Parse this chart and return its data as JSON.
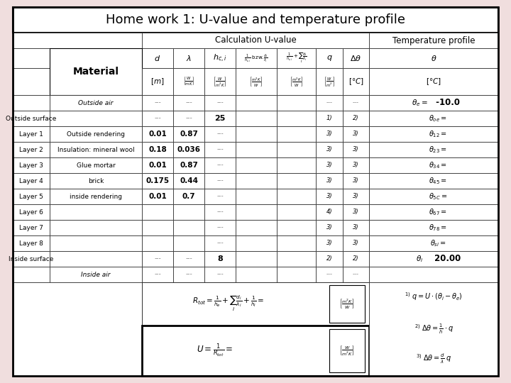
{
  "title": "Home work 1: U-value and temperature profile",
  "bg_color": "#f0dede",
  "header1": "Calculation U-value",
  "header2": "Temperature profile",
  "rows_data": [
    [
      "",
      "Outside air",
      "---",
      "---",
      "---",
      "---",
      "---",
      "outside_air"
    ],
    [
      "Outside surface",
      "",
      "---",
      "---",
      "25",
      "1)",
      "2)",
      "outside_surface"
    ],
    [
      "Layer 1",
      "Outside rendering",
      "0.01",
      "0.87",
      "---",
      "3)",
      "3)",
      "layer"
    ],
    [
      "Layer 2",
      "Insulation: mineral wool",
      "0.18",
      "0.036",
      "---",
      "3)",
      "3)",
      "layer"
    ],
    [
      "Layer 3",
      "Glue mortar",
      "0.01",
      "0.87",
      "---",
      "3)",
      "3)",
      "layer"
    ],
    [
      "Layer 4",
      "brick",
      "0.175",
      "0.44",
      "---",
      "3)",
      "3)",
      "layer"
    ],
    [
      "Layer 5",
      "inside rendering",
      "0.01",
      "0.7",
      "---",
      "3)",
      "3)",
      "layer"
    ],
    [
      "Layer 6",
      "",
      "",
      "",
      "---",
      "4)",
      "3)",
      "layer_empty"
    ],
    [
      "Layer 7",
      "",
      "",
      "",
      "---",
      "3)",
      "3)",
      "layer_empty"
    ],
    [
      "Layer 8",
      "",
      "",
      "",
      "---",
      "3)",
      "3)",
      "layer_empty"
    ],
    [
      "Inside surface",
      "",
      "---",
      "---",
      "8",
      "2)",
      "2)",
      "inside_surface"
    ],
    [
      "",
      "Inside air",
      "---",
      "---",
      "---",
      "---",
      "---",
      "inside_air"
    ]
  ],
  "theta_col": [
    "outside_air_theta",
    "outside_surface_theta",
    "layer1_theta",
    "layer2_theta",
    "layer3_theta",
    "layer4_theta",
    "layer5_theta",
    "layer6_theta",
    "layer7_theta",
    "layer8_theta",
    "inside_surface_theta",
    ""
  ]
}
